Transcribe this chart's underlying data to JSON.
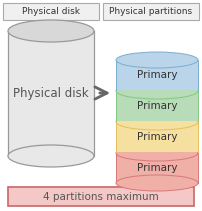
{
  "bg_color": "#ffffff",
  "title_left": "Physical disk",
  "title_right": "Physical partitions",
  "cylinder_label": "Physical disk",
  "partition_label": "Primary",
  "partition_colors_top_to_bottom": [
    "#bad4ea",
    "#b8dbb8",
    "#f5e0a0",
    "#f0b0a8"
  ],
  "partition_edge_colors_top_to_bottom": [
    "#7aaed0",
    "#82c882",
    "#e0c060",
    "#d87878"
  ],
  "bottom_text": "4 partitions maximum",
  "bottom_bg": "#f5c8c8",
  "bottom_border": "#cc6666",
  "arrow_color": "#666666",
  "header_bg": "#f0f0f0",
  "header_border": "#aaaaaa",
  "cylinder_fill": "#e8e8e8",
  "cylinder_fill_top": "#d8d8d8",
  "cylinder_border": "#999999"
}
